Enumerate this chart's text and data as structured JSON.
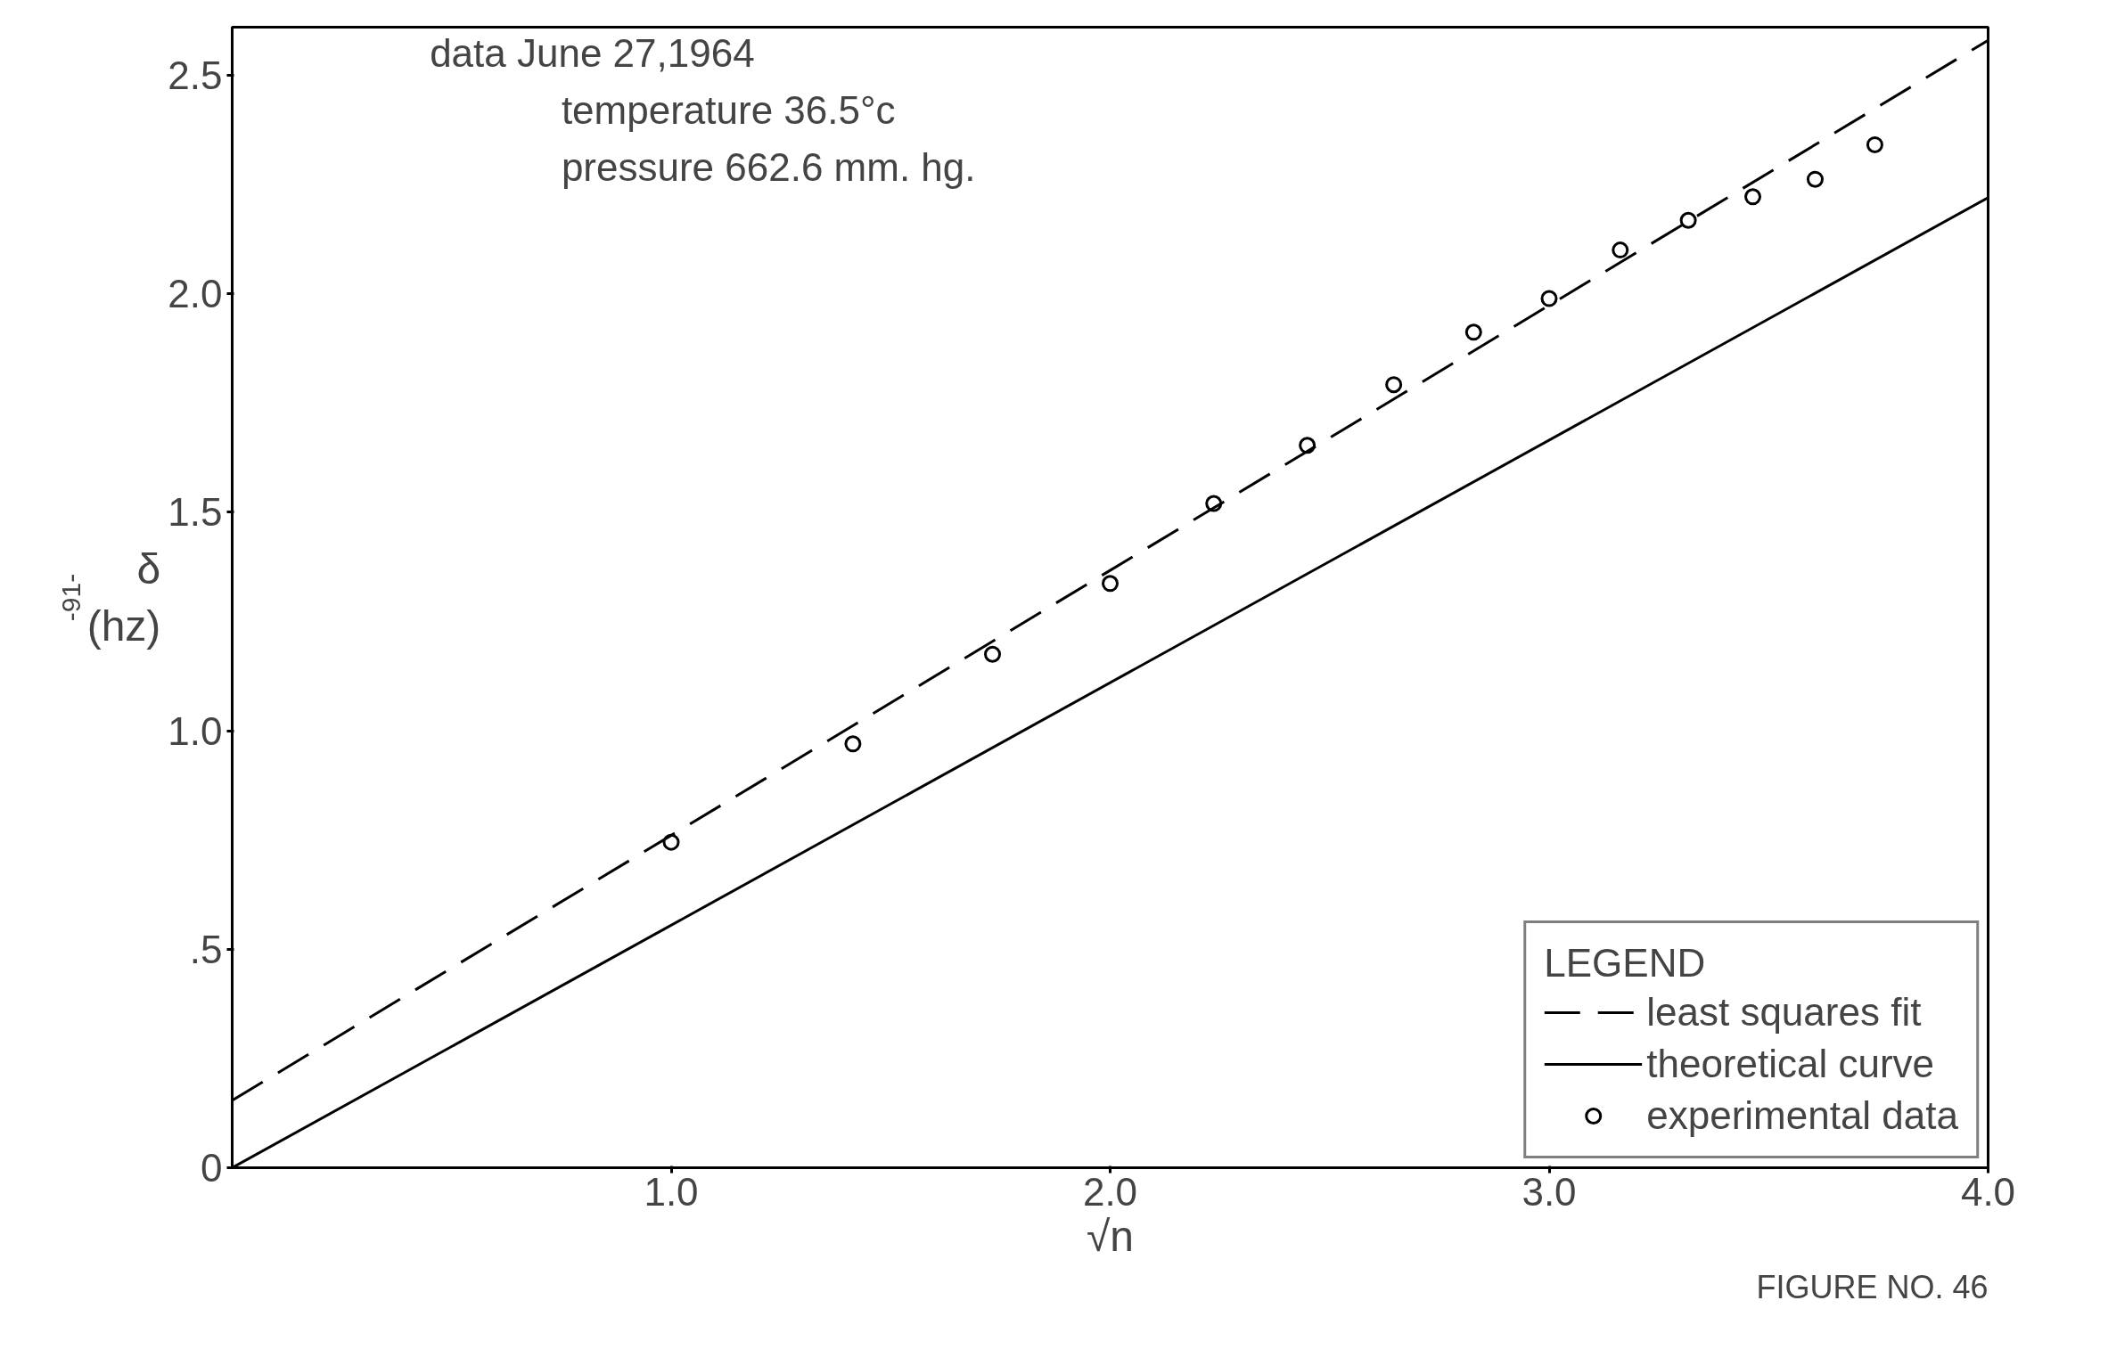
{
  "chart_data": {
    "type": "scatter",
    "xlabel": "√n",
    "ylabel": "δ\n(hz)",
    "annotations": [
      "data June 27,1964",
      "temperature 36.5°c",
      "pressure 662.6 mm. hg.",
      "FIGURE NO. 46",
      "-91-"
    ],
    "xlim": [
      0,
      4.0
    ],
    "ylim": [
      0,
      2.61
    ],
    "xticks": [
      {
        "value": 1.0,
        "label": "1.0"
      },
      {
        "value": 2.0,
        "label": "2.0"
      },
      {
        "value": 3.0,
        "label": "3.0"
      },
      {
        "value": 4.0,
        "label": "4.0"
      }
    ],
    "yticks": [
      0,
      {
        "value": 0.5,
        "label": ".5"
      },
      {
        "value": 1.0,
        "label": "1.0"
      },
      {
        "value": 1.5,
        "label": "1.5"
      },
      {
        "value": 2.0,
        "label": "2.0"
      },
      {
        "value": 2.5,
        "label": "2.5"
      }
    ],
    "grid": false,
    "legend": "bottom right",
    "legend_title": "LEGEND",
    "series": [
      {
        "name": "least squares fit",
        "type": "line",
        "line_style": "dashed",
        "marker": "none",
        "color": "#000000",
        "x": [
          0,
          4.0
        ],
        "values": [
          0.154,
          2.58
        ]
      },
      {
        "name": "theoretical curve",
        "type": "line",
        "line_style": "solid",
        "marker": "none",
        "color": "#000000",
        "x": [
          0,
          4.0
        ],
        "values": [
          0,
          2.22
        ]
      },
      {
        "name": "experimental data",
        "marker": "circle",
        "color": "#000000",
        "x": [
          1.0,
          1.414,
          1.732,
          2.0,
          2.236,
          2.449,
          2.646,
          2.828,
          3.0,
          3.162,
          3.317,
          3.464,
          3.606,
          3.742
        ],
        "values": [
          0.745,
          0.97,
          1.175,
          1.337,
          1.52,
          1.653,
          1.792,
          1.912,
          1.989,
          2.1,
          2.168,
          2.222,
          2.262,
          2.341
        ]
      }
    ]
  }
}
